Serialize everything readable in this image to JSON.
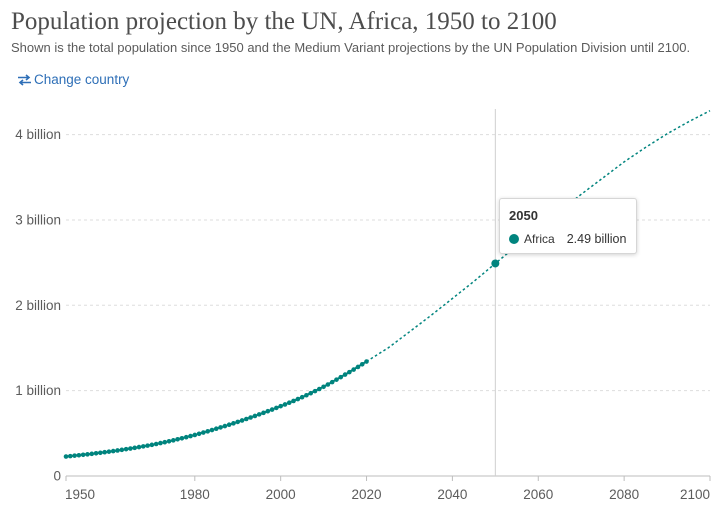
{
  "header": {
    "title": "Population projection by the UN, Africa, 1950 to 2100",
    "subtitle": "Shown is the total population since 1950 and the Medium Variant projections by the UN Population Division until 2100.",
    "change_country_label": "Change country"
  },
  "tooltip": {
    "year": "2050",
    "series_name": "Africa",
    "value_label": "2.49 billion"
  },
  "colors": {
    "series": "#00847e",
    "grid": "#dddddd",
    "axis_text": "#5b5b5b",
    "link": "#2e6fb7"
  },
  "chart_data": {
    "type": "line",
    "title": "Population projection by the UN, Africa, 1950 to 2100",
    "xlabel": "",
    "ylabel": "",
    "xlim": [
      1950,
      2100
    ],
    "ylim": [
      0,
      4300000000
    ],
    "x_ticks": [
      1950,
      1980,
      2000,
      2020,
      2040,
      2060,
      2080,
      2100
    ],
    "x_tick_labels": [
      "1950",
      "1980",
      "2000",
      "2020",
      "2040",
      "2060",
      "2080",
      "2100"
    ],
    "y_ticks": [
      0,
      1000000000,
      2000000000,
      3000000000,
      4000000000
    ],
    "y_tick_labels": [
      "0",
      "1 billion",
      "2 billion",
      "3 billion",
      "4 billion"
    ],
    "grid": true,
    "legend": "none",
    "series": [
      {
        "name": "Africa",
        "style": "observed",
        "x": [
          1950,
          1955,
          1960,
          1965,
          1970,
          1975,
          1980,
          1985,
          1990,
          1995,
          2000,
          2005,
          2010,
          2015,
          2020
        ],
        "y": [
          228000000,
          254000000,
          285000000,
          322000000,
          365000000,
          418000000,
          481000000,
          554000000,
          634000000,
          722000000,
          818000000,
          923000000,
          1045000000,
          1188000000,
          1341000000
        ]
      },
      {
        "name": "Africa",
        "style": "projection",
        "x": [
          2020,
          2025,
          2030,
          2035,
          2040,
          2045,
          2050,
          2055,
          2060,
          2065,
          2070,
          2075,
          2080,
          2085,
          2090,
          2095,
          2100
        ],
        "y": [
          1341000000,
          1500000000,
          1690000000,
          1880000000,
          2080000000,
          2280000000,
          2490000000,
          2700000000,
          2900000000,
          3100000000,
          3300000000,
          3490000000,
          3680000000,
          3850000000,
          4010000000,
          4150000000,
          4280000000
        ]
      }
    ],
    "highlight": {
      "x": 2050,
      "y": 2490000000
    }
  }
}
